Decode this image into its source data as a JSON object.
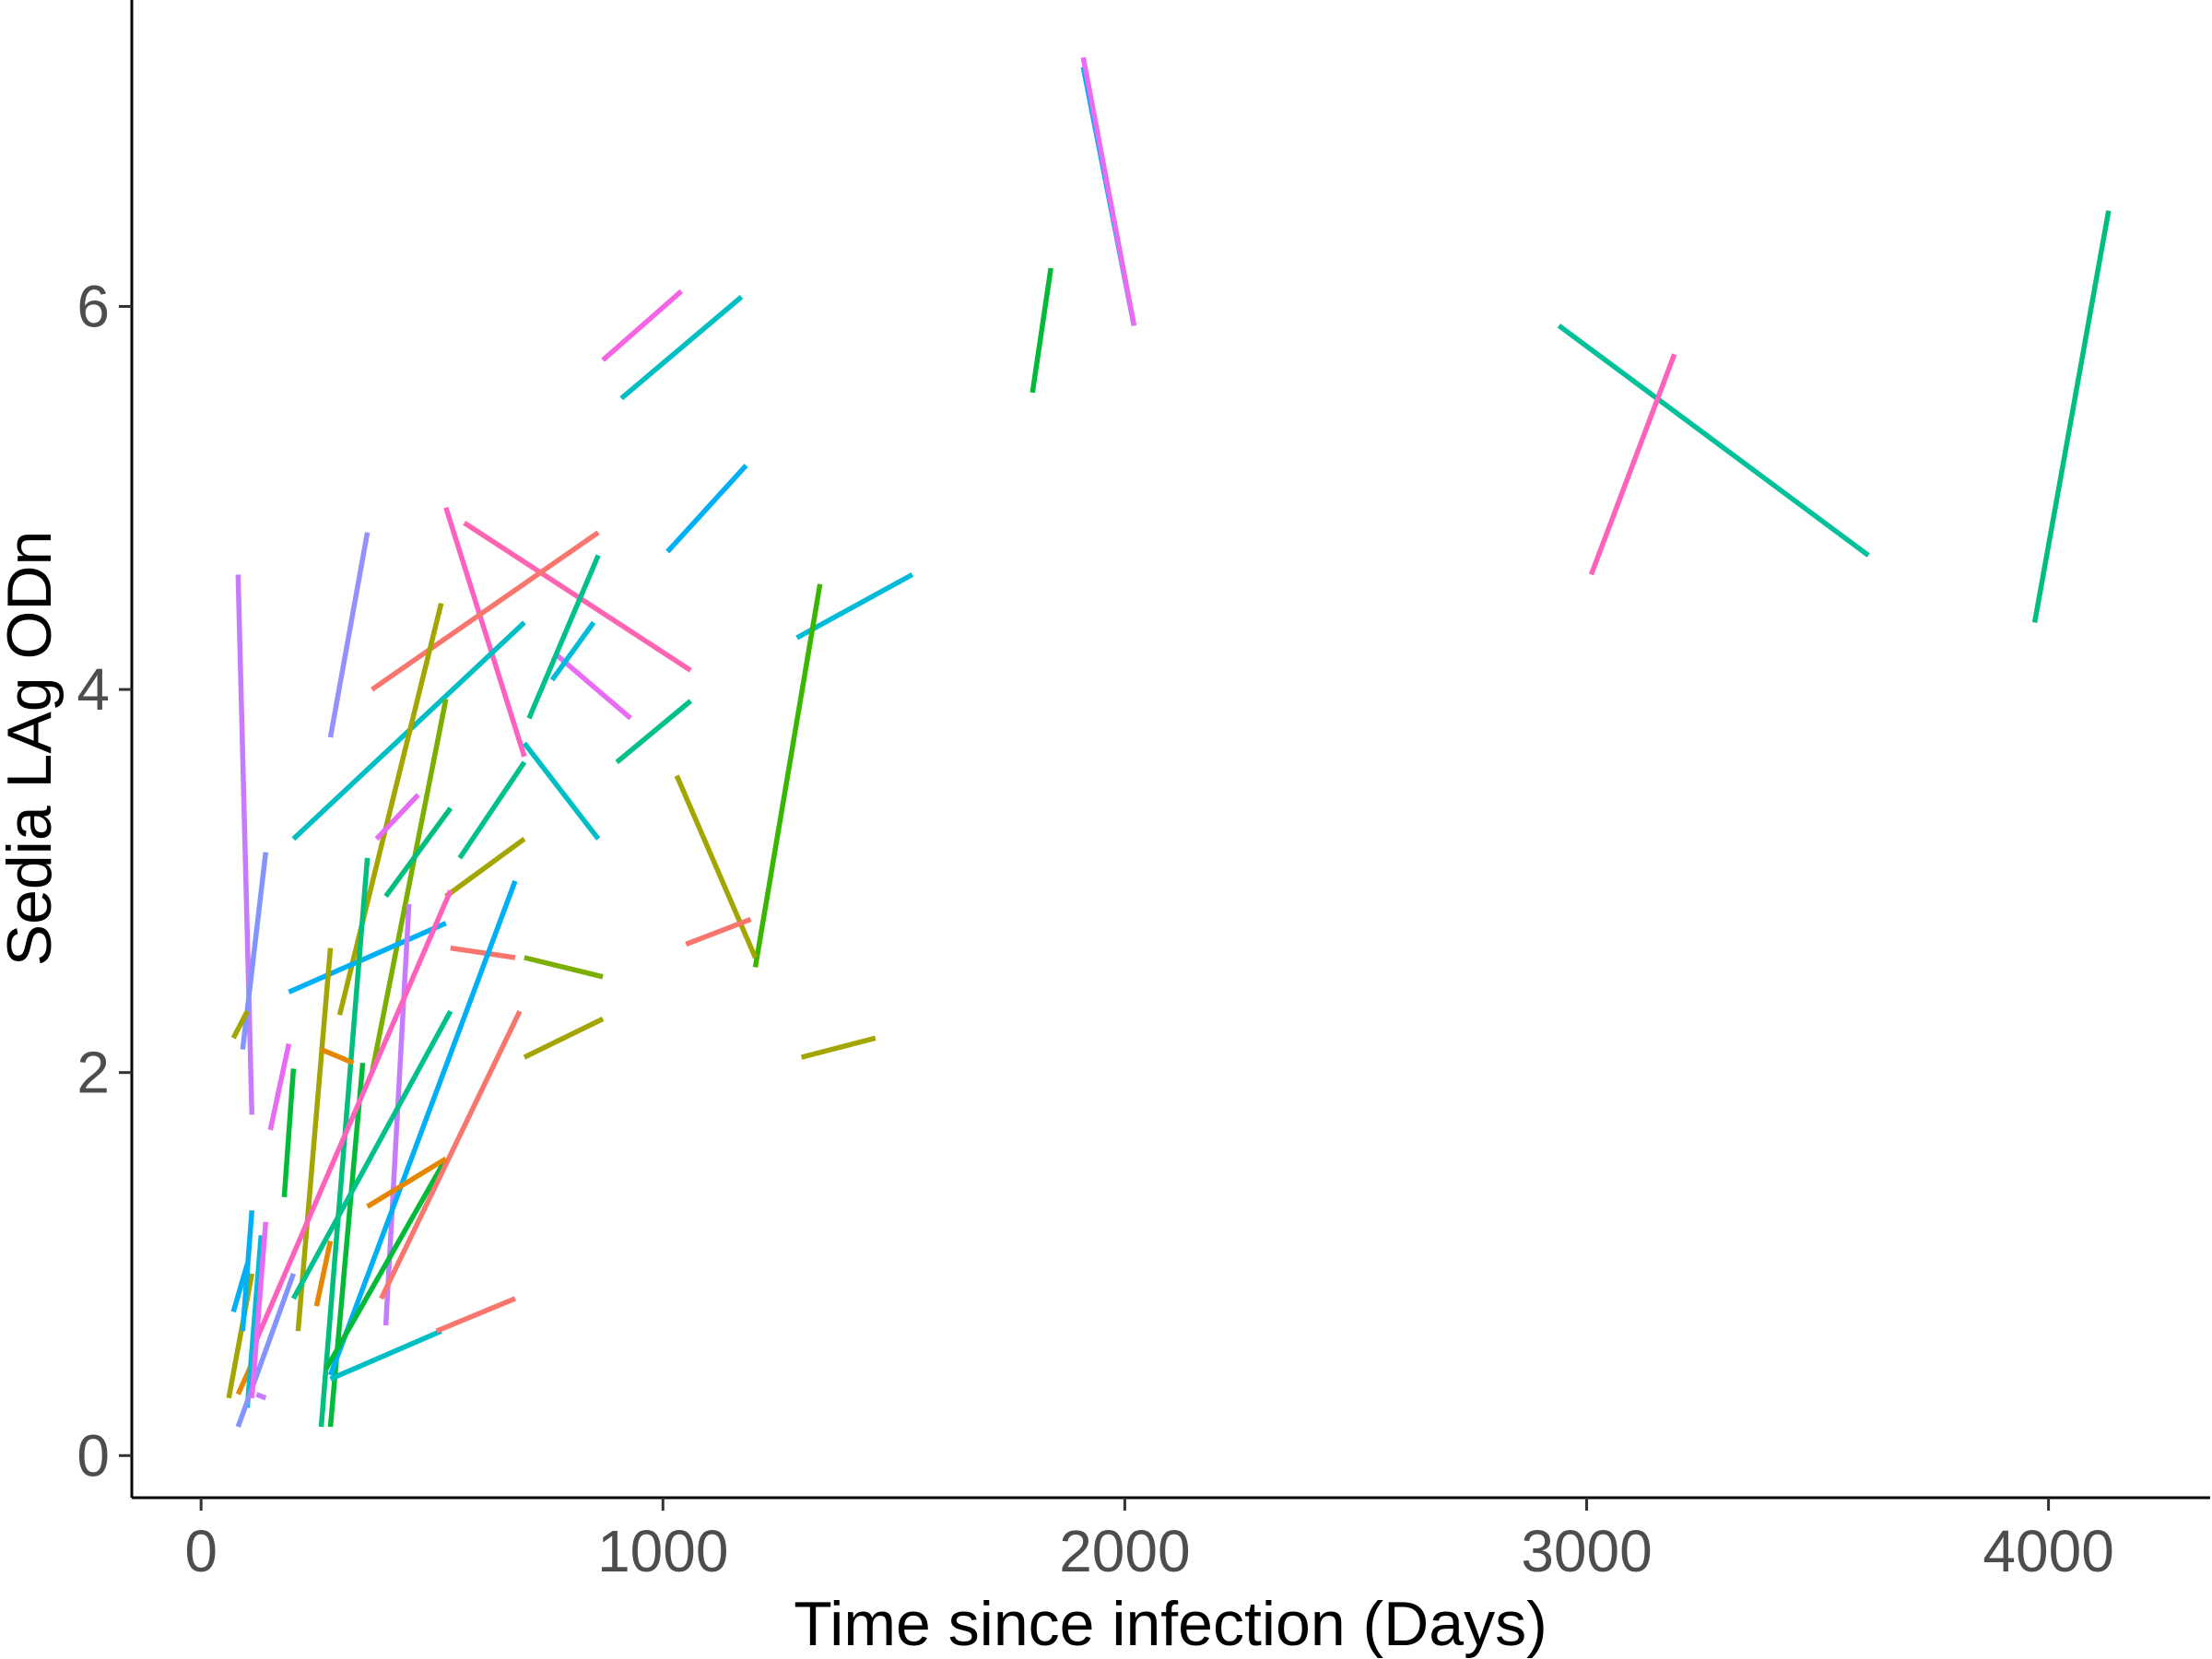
{
  "chart_data": {
    "type": "line",
    "title": "",
    "xlabel": "Time since infection (Days)",
    "ylabel": "Sedia LAg ODn",
    "xlim": [
      -150,
      4350
    ],
    "ylim": [
      -0.22,
      7.6
    ],
    "x_ticks": [
      0,
      1000,
      2000,
      3000,
      4000
    ],
    "y_ticks": [
      0,
      2,
      4,
      6
    ],
    "grid": false,
    "legend": "none",
    "series": [
      {
        "color": "#00B0F6",
        "x": [
          1910,
          2020
        ],
        "y": [
          7.25,
          5.9
        ]
      },
      {
        "color": "#E76BF3",
        "x": [
          1910,
          2020
        ],
        "y": [
          7.3,
          5.9
        ]
      },
      {
        "color": "#00BF7D",
        "x": [
          3970,
          4130
        ],
        "y": [
          4.35,
          6.5
        ]
      },
      {
        "color": "#00C19A",
        "x": [
          2940,
          3610
        ],
        "y": [
          5.9,
          4.7
        ]
      },
      {
        "color": "#FF62BC",
        "x": [
          3010,
          3190
        ],
        "y": [
          4.6,
          5.75
        ]
      },
      {
        "color": "#00BA38",
        "x": [
          1800,
          1840
        ],
        "y": [
          5.55,
          6.2
        ]
      },
      {
        "color": "#F564E3",
        "x": [
          870,
          1040
        ],
        "y": [
          5.72,
          6.08
        ]
      },
      {
        "color": "#00BFC4",
        "x": [
          910,
          1170
        ],
        "y": [
          5.52,
          6.05
        ]
      },
      {
        "color": "#00B0F6",
        "x": [
          1010,
          1180
        ],
        "y": [
          4.72,
          5.17
        ]
      },
      {
        "color": "#00BCD8",
        "x": [
          1290,
          1540
        ],
        "y": [
          4.27,
          4.6
        ]
      },
      {
        "color": "#39B600",
        "x": [
          1200,
          1340
        ],
        "y": [
          2.55,
          4.55
        ]
      },
      {
        "color": "#A3A500",
        "x": [
          1030,
          1200
        ],
        "y": [
          3.55,
          2.6
        ]
      },
      {
        "color": "#F8766D",
        "x": [
          1050,
          1190
        ],
        "y": [
          2.67,
          2.8
        ]
      },
      {
        "color": "#A3A500",
        "x": [
          1300,
          1460
        ],
        "y": [
          2.08,
          2.18
        ]
      },
      {
        "color": "#FF61C3",
        "x": [
          530,
          700
        ],
        "y": [
          4.95,
          3.65
        ]
      },
      {
        "color": "#FF64B0",
        "x": [
          570,
          1060
        ],
        "y": [
          4.87,
          4.1
        ]
      },
      {
        "color": "#F8766D",
        "x": [
          370,
          860
        ],
        "y": [
          4.0,
          4.82
        ]
      },
      {
        "color": "#E76BF3",
        "x": [
          770,
          930
        ],
        "y": [
          4.18,
          3.85
        ]
      },
      {
        "color": "#00C08B",
        "x": [
          900,
          1060
        ],
        "y": [
          3.62,
          3.94
        ]
      },
      {
        "color": "#00BFC4",
        "x": [
          700,
          860
        ],
        "y": [
          3.72,
          3.22
        ]
      },
      {
        "color": "#00C08B",
        "x": [
          710,
          860
        ],
        "y": [
          3.85,
          4.7
        ]
      },
      {
        "color": "#00BCD8",
        "x": [
          760,
          850
        ],
        "y": [
          4.05,
          4.35
        ]
      },
      {
        "color": "#00BFC4",
        "x": [
          200,
          700
        ],
        "y": [
          3.22,
          4.35
        ]
      },
      {
        "color": "#9590FF",
        "x": [
          280,
          360
        ],
        "y": [
          3.75,
          4.82
        ]
      },
      {
        "color": "#A3A500",
        "x": [
          300,
          520
        ],
        "y": [
          2.3,
          4.45
        ]
      },
      {
        "color": "#7CAE00",
        "x": [
          370,
          530
        ],
        "y": [
          2.0,
          3.95
        ]
      },
      {
        "color": "#00C08B",
        "x": [
          560,
          700
        ],
        "y": [
          3.12,
          3.62
        ]
      },
      {
        "color": "#00BF7D",
        "x": [
          400,
          540
        ],
        "y": [
          2.92,
          3.38
        ]
      },
      {
        "color": "#E76BF3",
        "x": [
          380,
          470
        ],
        "y": [
          3.22,
          3.45
        ]
      },
      {
        "color": "#A3A500",
        "x": [
          530,
          700
        ],
        "y": [
          2.92,
          3.22
        ]
      },
      {
        "color": "#00B0F6",
        "x": [
          190,
          530
        ],
        "y": [
          2.42,
          2.78
        ]
      },
      {
        "color": "#F8766D",
        "x": [
          540,
          680
        ],
        "y": [
          2.65,
          2.6
        ]
      },
      {
        "color": "#7CAE00",
        "x": [
          700,
          870
        ],
        "y": [
          2.6,
          2.5
        ]
      },
      {
        "color": "#A3A500",
        "x": [
          700,
          870
        ],
        "y": [
          2.08,
          2.28
        ]
      },
      {
        "color": "#C77CFF",
        "x": [
          80,
          110
        ],
        "y": [
          4.6,
          1.78
        ]
      },
      {
        "color": "#8494FF",
        "x": [
          90,
          140
        ],
        "y": [
          2.12,
          3.15
        ]
      },
      {
        "color": "#A3A500",
        "x": [
          70,
          100
        ],
        "y": [
          2.18,
          2.32
        ]
      },
      {
        "color": "#E76BF3",
        "x": [
          150,
          190
        ],
        "y": [
          1.7,
          2.15
        ]
      },
      {
        "color": "#00BA38",
        "x": [
          180,
          200
        ],
        "y": [
          1.35,
          2.02
        ]
      },
      {
        "color": "#00BF7D",
        "x": [
          260,
          360
        ],
        "y": [
          0.15,
          3.12
        ]
      },
      {
        "color": "#00BA38",
        "x": [
          280,
          350
        ],
        "y": [
          0.15,
          2.05
        ]
      },
      {
        "color": "#A3A500",
        "x": [
          210,
          280
        ],
        "y": [
          0.65,
          2.65
        ]
      },
      {
        "color": "#E58700",
        "x": [
          260,
          330
        ],
        "y": [
          2.12,
          2.05
        ]
      },
      {
        "color": "#C77CFF",
        "x": [
          400,
          450
        ],
        "y": [
          0.68,
          2.88
        ]
      },
      {
        "color": "#00B0F6",
        "x": [
          280,
          680
        ],
        "y": [
          0.42,
          3.0
        ]
      },
      {
        "color": "#FF62BC",
        "x": [
          110,
          540
        ],
        "y": [
          0.55,
          2.95
        ]
      },
      {
        "color": "#00C08B",
        "x": [
          200,
          540
        ],
        "y": [
          0.82,
          2.32
        ]
      },
      {
        "color": "#00BA38",
        "x": [
          270,
          530
        ],
        "y": [
          0.45,
          1.55
        ]
      },
      {
        "color": "#F8766D",
        "x": [
          390,
          690
        ],
        "y": [
          0.82,
          2.32
        ]
      },
      {
        "color": "#E58700",
        "x": [
          360,
          530
        ],
        "y": [
          1.3,
          1.55
        ]
      },
      {
        "color": "#E58700",
        "x": [
          250,
          280
        ],
        "y": [
          0.78,
          1.12
        ]
      },
      {
        "color": "#00BFC4",
        "x": [
          280,
          520
        ],
        "y": [
          0.4,
          0.65
        ]
      },
      {
        "color": "#F8766D",
        "x": [
          510,
          680
        ],
        "y": [
          0.65,
          0.82
        ]
      },
      {
        "color": "#A3A500",
        "x": [
          60,
          110
        ],
        "y": [
          0.3,
          0.95
        ]
      },
      {
        "color": "#E58700",
        "x": [
          80,
          110
        ],
        "y": [
          0.32,
          0.48
        ]
      },
      {
        "color": "#00B0F6",
        "x": [
          70,
          100
        ],
        "y": [
          0.75,
          1.0
        ]
      },
      {
        "color": "#00B0F6",
        "x": [
          90,
          110
        ],
        "y": [
          0.65,
          1.28
        ]
      },
      {
        "color": "#00BCD8",
        "x": [
          100,
          130
        ],
        "y": [
          0.25,
          1.15
        ]
      },
      {
        "color": "#8494FF",
        "x": [
          80,
          200
        ],
        "y": [
          0.15,
          0.95
        ]
      },
      {
        "color": "#E76BF3",
        "x": [
          110,
          140
        ],
        "y": [
          0.3,
          1.22
        ]
      },
      {
        "color": "#C77CFF",
        "x": [
          120,
          140
        ],
        "y": [
          0.32,
          0.3
        ]
      }
    ]
  }
}
